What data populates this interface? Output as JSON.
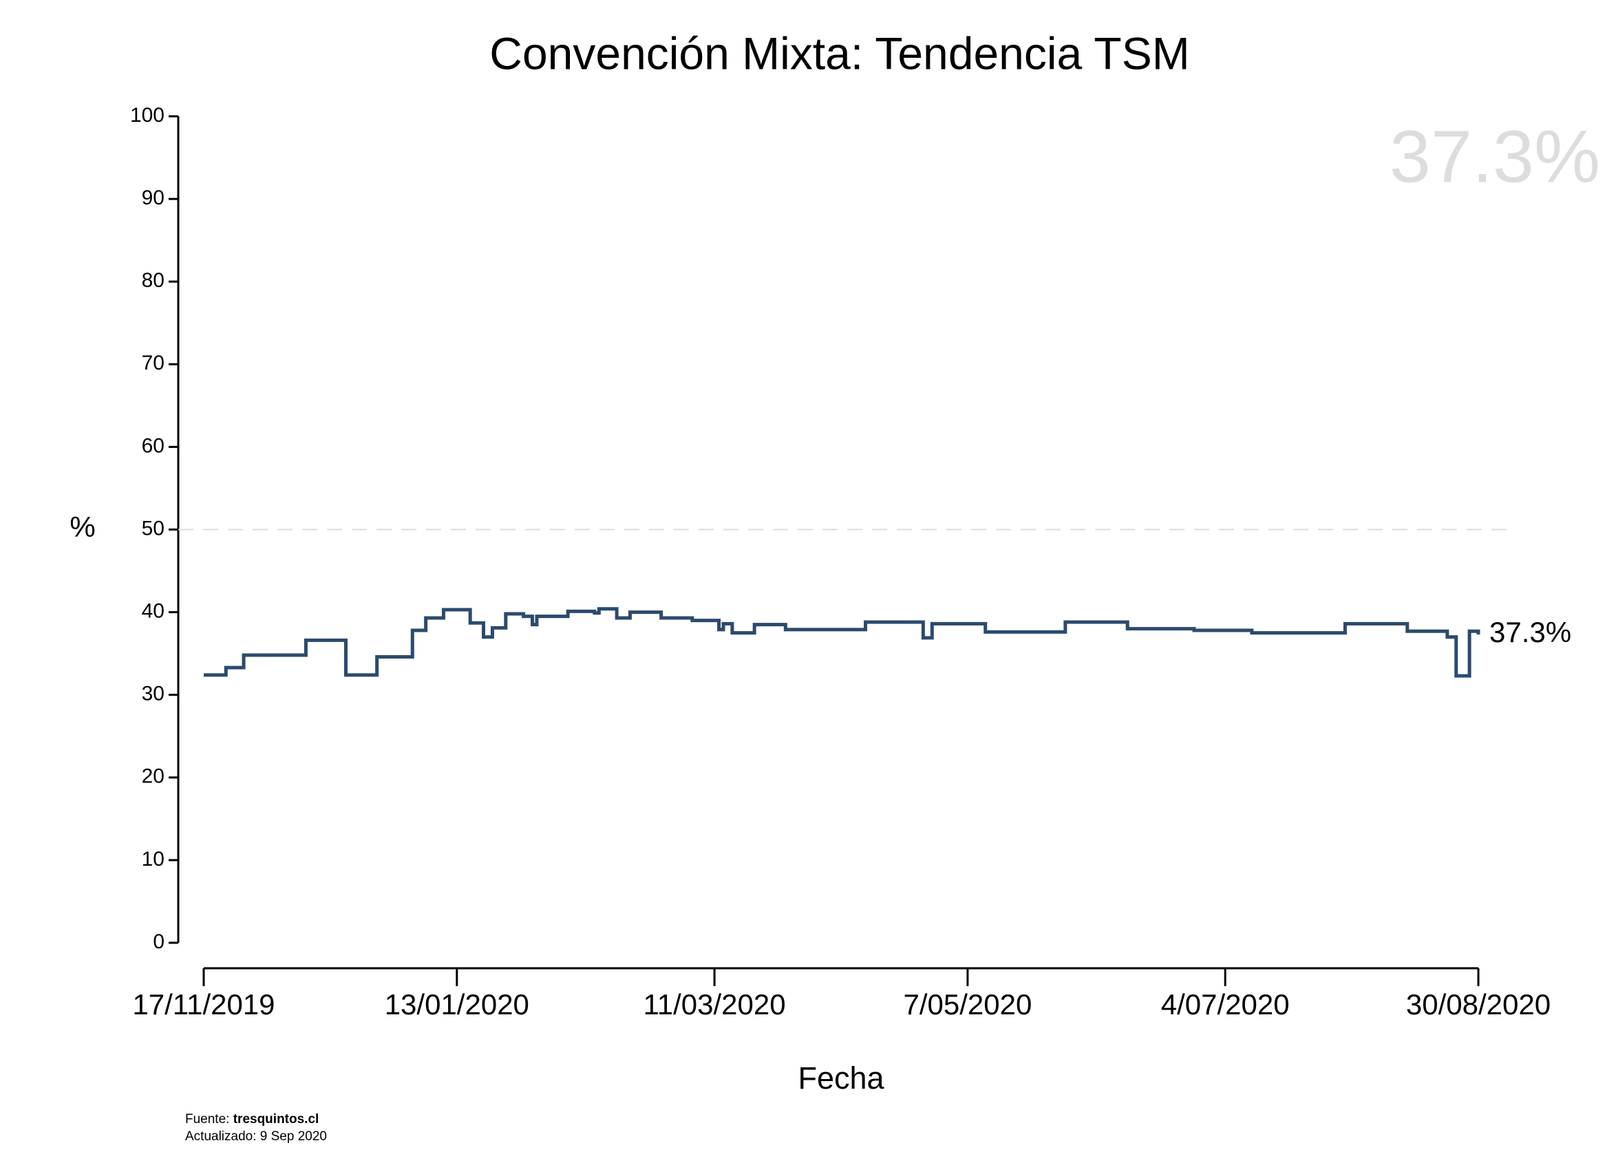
{
  "chart_data": {
    "type": "step",
    "title": "Convención Mixta: Tendencia TSM",
    "x_label": "Fecha",
    "y_label": "%",
    "x": [
      "2019-11-17",
      "2019-11-22",
      "2019-11-26",
      "2019-12-10",
      "2019-12-19",
      "2019-12-26",
      "2020-01-03",
      "2020-01-06",
      "2020-01-10",
      "2020-01-16",
      "2020-01-19",
      "2020-01-21",
      "2020-01-24",
      "2020-01-28",
      "2020-01-30",
      "2020-01-31",
      "2020-02-07",
      "2020-02-13",
      "2020-02-14",
      "2020-02-18",
      "2020-02-21",
      "2020-02-28",
      "2020-03-06",
      "2020-03-12",
      "2020-03-13",
      "2020-03-15",
      "2020-03-20",
      "2020-03-27",
      "2020-04-14",
      "2020-04-27",
      "2020-04-29",
      "2020-05-11",
      "2020-05-29",
      "2020-06-12",
      "2020-06-27",
      "2020-07-10",
      "2020-07-31",
      "2020-08-14",
      "2020-08-23",
      "2020-08-25",
      "2020-08-28",
      "2020-08-30"
    ],
    "series": [
      {
        "name": "TSM",
        "color": "#2c4a6e",
        "values": [
          32.4,
          33.3,
          34.8,
          36.6,
          32.4,
          34.6,
          37.8,
          39.3,
          40.3,
          38.7,
          37.0,
          38.1,
          39.8,
          39.5,
          38.5,
          39.5,
          40.1,
          39.9,
          40.4,
          39.3,
          40.0,
          39.3,
          39.0,
          37.9,
          38.6,
          37.5,
          38.5,
          37.9,
          38.8,
          36.9,
          38.6,
          37.6,
          38.8,
          38.0,
          37.8,
          37.5,
          38.6,
          37.7,
          37.0,
          32.3,
          37.7,
          37.3
        ]
      }
    ],
    "xlim": [
      "2019-11-17",
      "2020-08-30"
    ],
    "xticks": [
      {
        "value": "2019-11-17",
        "label": "17/11/2019"
      },
      {
        "value": "2020-01-13",
        "label": "13/01/2020"
      },
      {
        "value": "2020-03-11",
        "label": "11/03/2020"
      },
      {
        "value": "2020-05-07",
        "label": "7/05/2020"
      },
      {
        "value": "2020-07-04",
        "label": "4/07/2020"
      },
      {
        "value": "2020-08-30",
        "label": "30/08/2020"
      }
    ],
    "ylim": [
      0,
      100
    ],
    "yticks": [
      0,
      10,
      20,
      30,
      40,
      50,
      60,
      70,
      80,
      90,
      100
    ],
    "reference_line": 50,
    "reference_color": "#dddddd",
    "highlight_label": "37.3%",
    "end_label": "37.3%",
    "source_prefix": "Fuente:",
    "source": "tresquintos.cl",
    "updated": "Actualizado: 9 Sep 2020"
  }
}
